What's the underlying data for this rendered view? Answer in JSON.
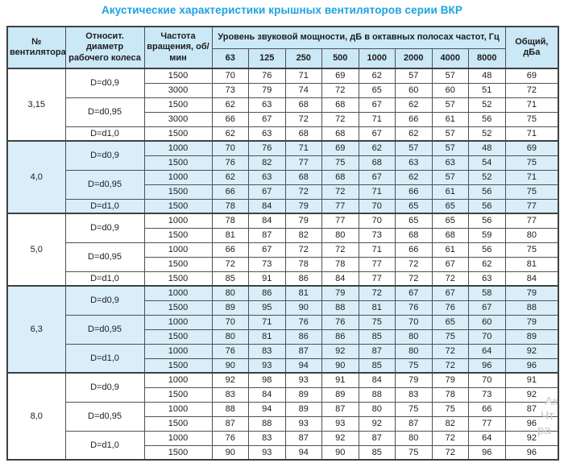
{
  "title": "Акустические характеристики крышных вентиляторов серии ВКР",
  "colors": {
    "title_accent": "#1ba3e0",
    "header_bg": "#cbe8f6",
    "shaded_row_bg": "#d9eef9",
    "border": "#4f5154",
    "text": "#1c1c1c",
    "watermark": "#c3c8cb"
  },
  "header": {
    "fan_no": "№ вентилятора",
    "rel_diameter": "Относит. диаметр рабочего колеса",
    "rpm": "Частота вращения, об/мин",
    "spl_band": "Уровень звуковой мощности, дБ в октавных полосах частот, Гц",
    "freqs": [
      "63",
      "125",
      "250",
      "500",
      "1000",
      "2000",
      "4000",
      "8000"
    ],
    "total": "Общий, дБа"
  },
  "watermark": {
    "fragments": [
      "Ак",
      "Чт",
      "ра"
    ]
  },
  "chart_data": {
    "type": "table",
    "title": "Акустические характеристики крышных вентиляторов серии ВКР",
    "columns": [
      "№ вентилятора",
      "Относит. диаметр рабочего колеса",
      "Частота вращения, об/мин",
      "63",
      "125",
      "250",
      "500",
      "1000",
      "2000",
      "4000",
      "8000",
      "Общий, дБа"
    ],
    "sections": [
      {
        "fan": "3,15",
        "shaded": false,
        "groups": [
          {
            "diameter": "D=d0,9",
            "rows": [
              {
                "rpm": "1500",
                "values": [
                  70,
                  76,
                  71,
                  69,
                  62,
                  57,
                  57,
                  48
                ],
                "total": 69
              },
              {
                "rpm": "3000",
                "values": [
                  73,
                  79,
                  74,
                  72,
                  65,
                  60,
                  60,
                  51
                ],
                "total": 72
              }
            ]
          },
          {
            "diameter": "D=d0,95",
            "rows": [
              {
                "rpm": "1500",
                "values": [
                  62,
                  63,
                  68,
                  68,
                  67,
                  62,
                  57,
                  52
                ],
                "total": 71
              },
              {
                "rpm": "3000",
                "values": [
                  66,
                  67,
                  72,
                  72,
                  71,
                  66,
                  61,
                  56
                ],
                "total": 75
              }
            ]
          },
          {
            "diameter": "D=d1,0",
            "rows": [
              {
                "rpm": "1500",
                "values": [
                  62,
                  63,
                  68,
                  68,
                  67,
                  62,
                  57,
                  52
                ],
                "total": 71
              }
            ]
          }
        ]
      },
      {
        "fan": "4,0",
        "shaded": true,
        "groups": [
          {
            "diameter": "D=d0,9",
            "rows": [
              {
                "rpm": "1000",
                "values": [
                  70,
                  76,
                  71,
                  69,
                  62,
                  57,
                  57,
                  48
                ],
                "total": 69
              },
              {
                "rpm": "1500",
                "values": [
                  76,
                  82,
                  77,
                  75,
                  68,
                  63,
                  63,
                  54
                ],
                "total": 75
              }
            ]
          },
          {
            "diameter": "D=d0,95",
            "rows": [
              {
                "rpm": "1000",
                "values": [
                  62,
                  63,
                  68,
                  68,
                  67,
                  62,
                  57,
                  52
                ],
                "total": 71
              },
              {
                "rpm": "1500",
                "values": [
                  66,
                  67,
                  72,
                  72,
                  71,
                  66,
                  61,
                  56
                ],
                "total": 75
              }
            ]
          },
          {
            "diameter": "D=d1,0",
            "rows": [
              {
                "rpm": "1500",
                "values": [
                  78,
                  84,
                  79,
                  77,
                  70,
                  65,
                  65,
                  56
                ],
                "total": 77
              }
            ]
          }
        ]
      },
      {
        "fan": "5,0",
        "shaded": false,
        "groups": [
          {
            "diameter": "D=d0,9",
            "rows": [
              {
                "rpm": "1000",
                "values": [
                  78,
                  84,
                  79,
                  77,
                  70,
                  65,
                  65,
                  56
                ],
                "total": 77
              },
              {
                "rpm": "1500",
                "values": [
                  81,
                  87,
                  82,
                  80,
                  73,
                  68,
                  68,
                  59
                ],
                "total": 80
              }
            ]
          },
          {
            "diameter": "D=d0,95",
            "rows": [
              {
                "rpm": "1000",
                "values": [
                  66,
                  67,
                  72,
                  72,
                  71,
                  66,
                  61,
                  56
                ],
                "total": 75
              },
              {
                "rpm": "1500",
                "values": [
                  72,
                  73,
                  78,
                  78,
                  77,
                  72,
                  67,
                  62
                ],
                "total": 81
              }
            ]
          },
          {
            "diameter": "D=d1,0",
            "rows": [
              {
                "rpm": "1500",
                "values": [
                  85,
                  91,
                  86,
                  84,
                  77,
                  72,
                  72,
                  63
                ],
                "total": 84
              }
            ]
          }
        ]
      },
      {
        "fan": "6,3",
        "shaded": true,
        "groups": [
          {
            "diameter": "D=d0,9",
            "rows": [
              {
                "rpm": "1000",
                "values": [
                  80,
                  86,
                  81,
                  79,
                  72,
                  67,
                  67,
                  58
                ],
                "total": 79
              },
              {
                "rpm": "1500",
                "values": [
                  89,
                  95,
                  90,
                  88,
                  81,
                  76,
                  76,
                  67
                ],
                "total": 88
              }
            ]
          },
          {
            "diameter": "D=d0,95",
            "rows": [
              {
                "rpm": "1000",
                "values": [
                  70,
                  71,
                  76,
                  76,
                  75,
                  70,
                  65,
                  60
                ],
                "total": 79
              },
              {
                "rpm": "1500",
                "values": [
                  80,
                  81,
                  86,
                  86,
                  85,
                  80,
                  75,
                  70
                ],
                "total": 89
              }
            ]
          },
          {
            "diameter": "D=d1,0",
            "rows": [
              {
                "rpm": "1000",
                "values": [
                  76,
                  83,
                  87,
                  92,
                  87,
                  80,
                  72,
                  64
                ],
                "total": 92
              },
              {
                "rpm": "1500",
                "values": [
                  90,
                  93,
                  94,
                  90,
                  85,
                  75,
                  72,
                  96
                ],
                "total": 96
              }
            ]
          }
        ]
      },
      {
        "fan": "8,0",
        "shaded": false,
        "groups": [
          {
            "diameter": "D=d0,9",
            "rows": [
              {
                "rpm": "1000",
                "values": [
                  92,
                  98,
                  93,
                  91,
                  84,
                  79,
                  79,
                  70
                ],
                "total": 91
              },
              {
                "rpm": "1500",
                "values": [
                  83,
                  84,
                  89,
                  89,
                  88,
                  83,
                  78,
                  73
                ],
                "total": 92
              }
            ]
          },
          {
            "diameter": "D=d0,95",
            "rows": [
              {
                "rpm": "1000",
                "values": [
                  88,
                  94,
                  89,
                  87,
                  80,
                  75,
                  75,
                  66
                ],
                "total": 87
              },
              {
                "rpm": "1500",
                "values": [
                  87,
                  88,
                  93,
                  93,
                  92,
                  87,
                  82,
                  77
                ],
                "total": 96
              }
            ]
          },
          {
            "diameter": "D=d1,0",
            "rows": [
              {
                "rpm": "1000",
                "values": [
                  76,
                  83,
                  87,
                  92,
                  87,
                  80,
                  72,
                  64
                ],
                "total": 92
              },
              {
                "rpm": "1500",
                "values": [
                  90,
                  93,
                  94,
                  90,
                  85,
                  75,
                  72,
                  96
                ],
                "total": 96
              }
            ]
          }
        ]
      }
    ]
  }
}
